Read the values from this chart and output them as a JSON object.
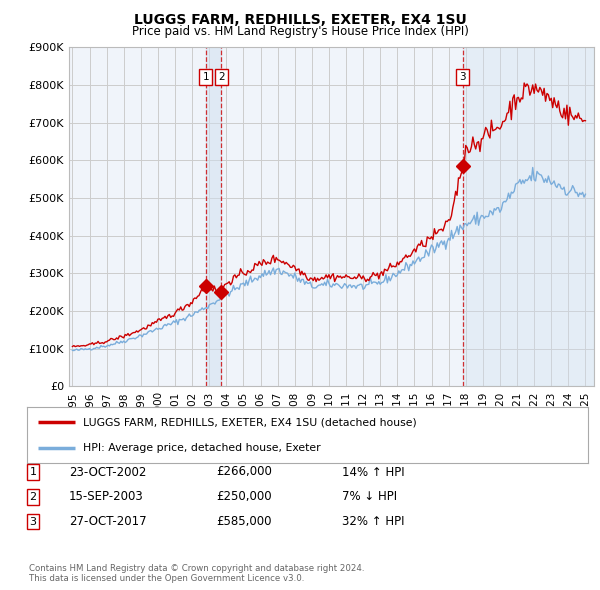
{
  "title": "LUGGS FARM, REDHILLS, EXETER, EX4 1SU",
  "subtitle": "Price paid vs. HM Land Registry's House Price Index (HPI)",
  "legend_label_red": "LUGGS FARM, REDHILLS, EXETER, EX4 1SU (detached house)",
  "legend_label_blue": "HPI: Average price, detached house, Exeter",
  "footer": "Contains HM Land Registry data © Crown copyright and database right 2024.\nThis data is licensed under the Open Government Licence v3.0.",
  "transactions": [
    {
      "num": 1,
      "date": "23-OCT-2002",
      "price": "£266,000",
      "hpi": "14% ↑ HPI",
      "year": 2002.8
    },
    {
      "num": 2,
      "date": "15-SEP-2003",
      "price": "£250,000",
      "hpi": "7% ↓ HPI",
      "year": 2003.71
    },
    {
      "num": 3,
      "date": "27-OCT-2017",
      "price": "£585,000",
      "hpi": "32% ↑ HPI",
      "year": 2017.82
    }
  ],
  "transaction_prices": [
    266000,
    250000,
    585000
  ],
  "ylim": [
    0,
    900000
  ],
  "yticks": [
    0,
    100000,
    200000,
    300000,
    400000,
    500000,
    600000,
    700000,
    800000,
    900000
  ],
  "red_color": "#cc0000",
  "blue_color": "#7aaddb",
  "marker_box_color": "#cc0000",
  "background_color": "#ffffff",
  "chart_bg_color": "#f0f4fa",
  "grid_color": "#cccccc",
  "shade_color": "#d0e0f0",
  "hpi_annual_years": [
    1995,
    1996,
    1997,
    1998,
    1999,
    2000,
    2001,
    2002,
    2003,
    2004,
    2005,
    2006,
    2007,
    2008,
    2009,
    2010,
    2011,
    2012,
    2013,
    2014,
    2015,
    2016,
    2017,
    2018,
    2019,
    2020,
    2021,
    2022,
    2023,
    2024,
    2025
  ],
  "hpi_annual_values": [
    95000,
    100000,
    108000,
    120000,
    135000,
    153000,
    170000,
    190000,
    215000,
    245000,
    270000,
    295000,
    310000,
    290000,
    265000,
    270000,
    268000,
    265000,
    275000,
    300000,
    330000,
    360000,
    395000,
    430000,
    450000,
    470000,
    530000,
    560000,
    545000,
    520000,
    510000
  ],
  "red_annual_years": [
    1995,
    1996,
    1997,
    1998,
    1999,
    2000,
    2001,
    2002,
    2002.8,
    2003.71,
    2004,
    2005,
    2006,
    2007,
    2008,
    2009,
    2010,
    2011,
    2012,
    2013,
    2014,
    2015,
    2016,
    2017,
    2017.82,
    2018,
    2019,
    2020,
    2021,
    2022,
    2023,
    2024,
    2025
  ],
  "red_annual_values": [
    105000,
    110000,
    120000,
    133000,
    150000,
    172000,
    195000,
    225000,
    266000,
    250000,
    275000,
    300000,
    325000,
    340000,
    315000,
    285000,
    292000,
    290000,
    287000,
    298000,
    325000,
    360000,
    395000,
    430000,
    585000,
    630000,
    660000,
    690000,
    770000,
    795000,
    760000,
    720000,
    705000
  ],
  "xtick_years": [
    1995,
    1996,
    1997,
    1998,
    1999,
    2000,
    2001,
    2002,
    2003,
    2004,
    2005,
    2006,
    2007,
    2008,
    2009,
    2010,
    2011,
    2012,
    2013,
    2014,
    2015,
    2016,
    2017,
    2018,
    2019,
    2020,
    2021,
    2022,
    2023,
    2024,
    2025
  ]
}
